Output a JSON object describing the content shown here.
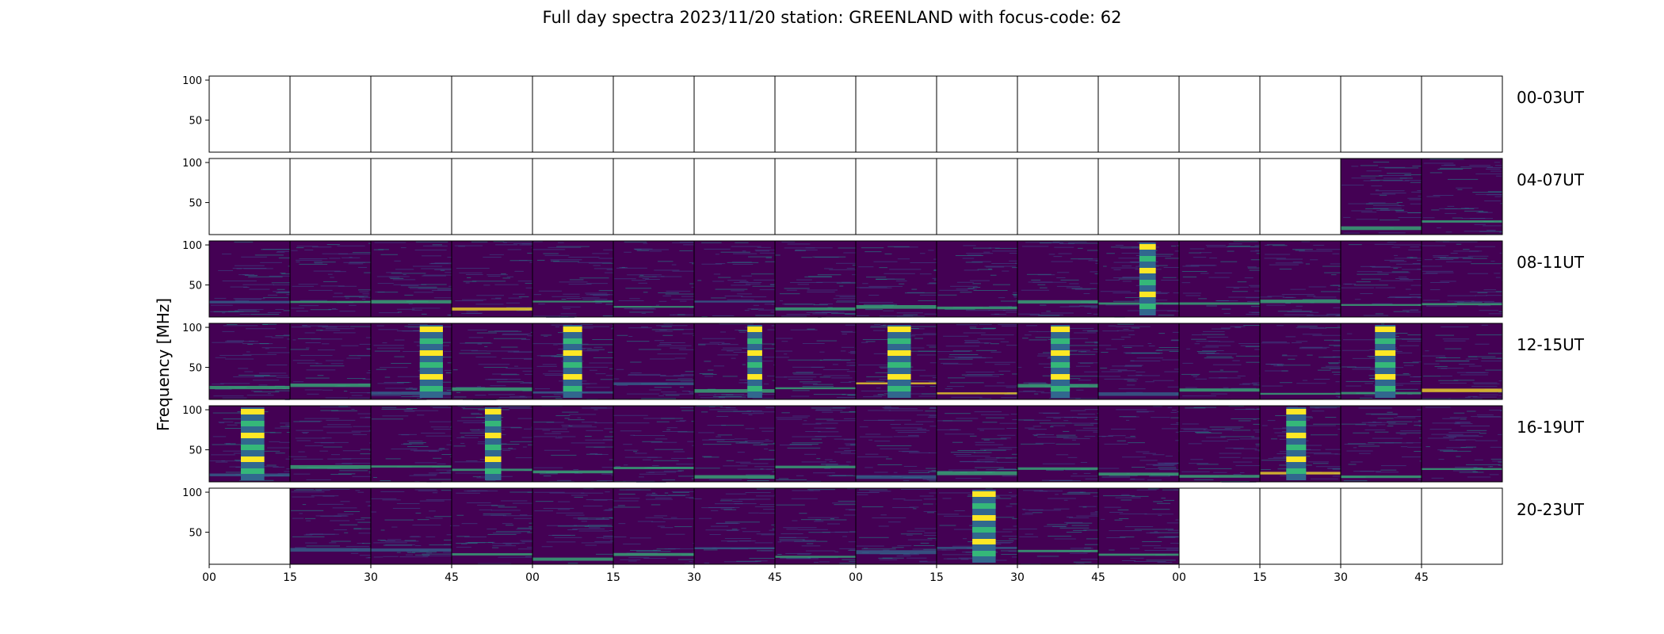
{
  "title": "Full day spectra 2023/11/20 station: GREENLAND with focus-code: 62",
  "chart_data": {
    "type": "heatmap",
    "title": "Full day spectra 2023/11/20 station: GREENLAND with focus-code: 62",
    "ylabel": "Frequency [MHz]",
    "yticks": [
      50,
      100
    ],
    "ylim": [
      10,
      105
    ],
    "xticks": [
      "00",
      "15",
      "30",
      "45",
      "00",
      "15",
      "30",
      "45",
      "00",
      "15",
      "30",
      "45",
      "00",
      "15",
      "30",
      "45"
    ],
    "colormap": [
      "#440154",
      "#31688e",
      "#35b779",
      "#fde725"
    ],
    "rows": [
      {
        "label": "00-03UT",
        "panels": [
          {
            "data": false
          },
          {
            "data": false
          },
          {
            "data": false
          },
          {
            "data": false
          },
          {
            "data": false
          },
          {
            "data": false
          },
          {
            "data": false
          },
          {
            "data": false
          },
          {
            "data": false
          },
          {
            "data": false
          },
          {
            "data": false
          },
          {
            "data": false
          },
          {
            "data": false
          },
          {
            "data": false
          },
          {
            "data": false
          },
          {
            "data": false
          }
        ]
      },
      {
        "label": "04-07UT",
        "panels": [
          {
            "data": false
          },
          {
            "data": false
          },
          {
            "data": false
          },
          {
            "data": false
          },
          {
            "data": false
          },
          {
            "data": false
          },
          {
            "data": false
          },
          {
            "data": false
          },
          {
            "data": false
          },
          {
            "data": false
          },
          {
            "data": false
          },
          {
            "data": false
          },
          {
            "data": false
          },
          {
            "data": false
          },
          {
            "data": true
          },
          {
            "data": true
          }
        ]
      },
      {
        "label": "08-11UT",
        "panels": [
          {
            "data": true
          },
          {
            "data": true
          },
          {
            "data": true
          },
          {
            "data": true
          },
          {
            "data": true
          },
          {
            "data": true
          },
          {
            "data": true
          },
          {
            "data": true
          },
          {
            "data": true
          },
          {
            "data": true
          },
          {
            "data": true
          },
          {
            "data": true,
            "burst": true
          },
          {
            "data": true
          },
          {
            "data": true
          },
          {
            "data": true
          },
          {
            "data": true
          }
        ]
      },
      {
        "label": "12-15UT",
        "panels": [
          {
            "data": true
          },
          {
            "data": true
          },
          {
            "data": true,
            "burst": true
          },
          {
            "data": true
          },
          {
            "data": true,
            "burst": true
          },
          {
            "data": true
          },
          {
            "data": true,
            "burst": true
          },
          {
            "data": true
          },
          {
            "data": true,
            "burst": true
          },
          {
            "data": true
          },
          {
            "data": true,
            "burst": true
          },
          {
            "data": true
          },
          {
            "data": true
          },
          {
            "data": true
          },
          {
            "data": true,
            "burst": true
          },
          {
            "data": true
          }
        ]
      },
      {
        "label": "16-19UT",
        "panels": [
          {
            "data": true,
            "burst": true
          },
          {
            "data": true
          },
          {
            "data": true
          },
          {
            "data": true,
            "burst": true
          },
          {
            "data": true
          },
          {
            "data": true
          },
          {
            "data": true
          },
          {
            "data": true
          },
          {
            "data": true
          },
          {
            "data": true
          },
          {
            "data": true
          },
          {
            "data": true
          },
          {
            "data": true
          },
          {
            "data": true,
            "burst": true
          },
          {
            "data": true
          },
          {
            "data": true
          }
        ]
      },
      {
        "label": "20-23UT",
        "panels": [
          {
            "data": false
          },
          {
            "data": true
          },
          {
            "data": true
          },
          {
            "data": true
          },
          {
            "data": true
          },
          {
            "data": true
          },
          {
            "data": true
          },
          {
            "data": true
          },
          {
            "data": true
          },
          {
            "data": true,
            "burst": true
          },
          {
            "data": true
          },
          {
            "data": true
          },
          {
            "data": false
          },
          {
            "data": false
          },
          {
            "data": false
          },
          {
            "data": false
          }
        ]
      }
    ]
  }
}
